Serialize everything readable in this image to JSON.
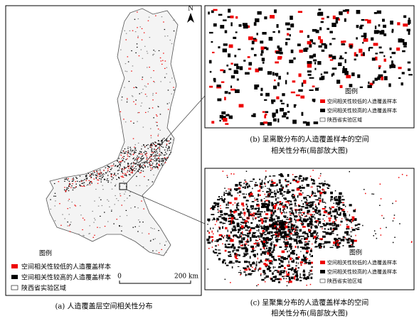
{
  "panels": [
    {
      "compass": "N",
      "legend": {
        "title": "图例",
        "items": [
          "空间相关性较低的人造覆盖样本",
          "空间相关性较高的人造覆盖样本",
          "陕西省实验区域"
        ]
      },
      "scale": {
        "start": "0",
        "end": "200 km"
      },
      "caption": "(a) 人造覆盖层空间相关性分布"
    },
    {
      "legend": {
        "title": "图例",
        "items": [
          "空间相关性较低的人造覆盖样本",
          "空间相关性较高的人造覆盖样本",
          "陕西省实验区域"
        ]
      },
      "caption": [
        "(b) 呈离散分布的人造覆盖样本的空间",
        "相关性分布(局部放大图)"
      ]
    },
    {
      "legend": {
        "title": "图例",
        "items": [
          "空间相关性较低的人造覆盖样本",
          "空间相关性较高的人造覆盖样本",
          "陕西省实验区域"
        ]
      },
      "caption": [
        "(c) 呈聚集分布的人造覆盖样本的空间",
        "相关性分布(局部放大图)"
      ]
    }
  ]
}
